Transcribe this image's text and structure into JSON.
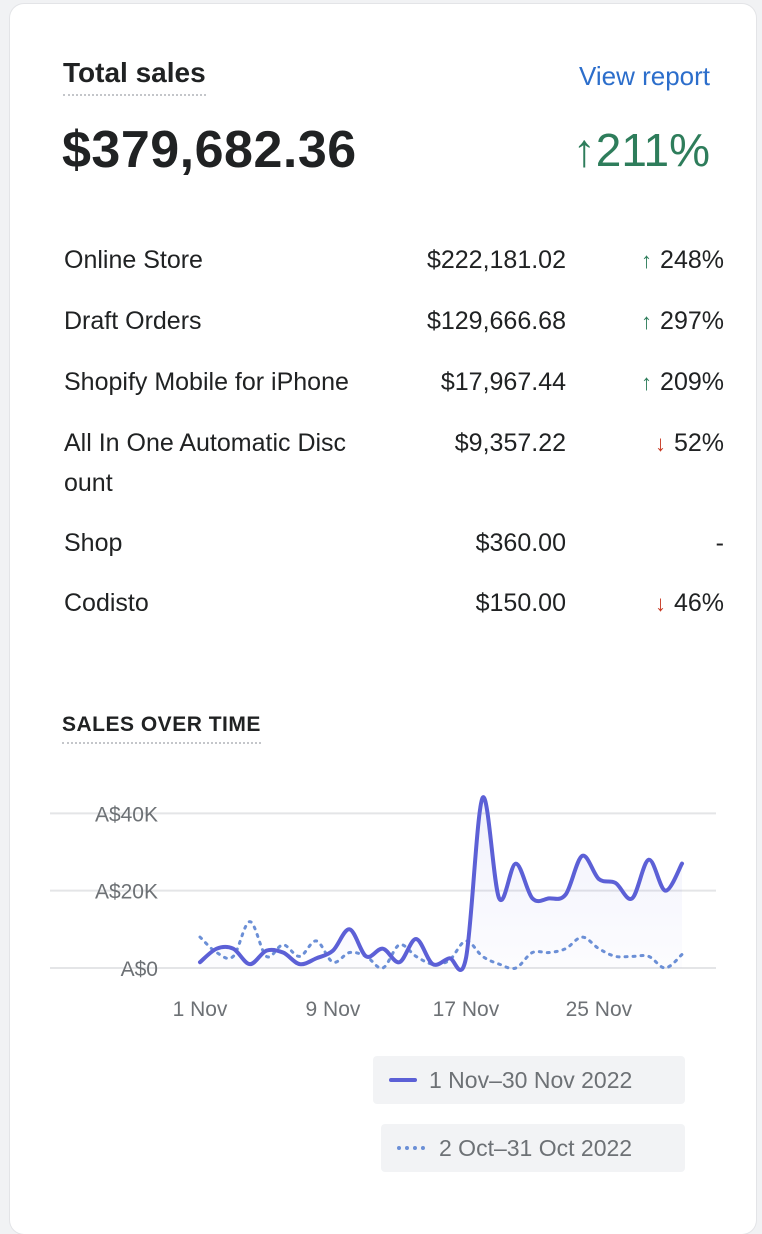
{
  "card": {
    "title": "Total sales",
    "view_report": "View report",
    "total": "$379,682.36",
    "total_change": "211%",
    "total_trend": "up"
  },
  "channels": [
    {
      "name": "Online Store",
      "amount": "$222,181.02",
      "change": "248%",
      "trend": "up"
    },
    {
      "name": "Draft Orders",
      "amount": "$129,666.68",
      "change": "297%",
      "trend": "up"
    },
    {
      "name": "Shopify Mobile for iPhone",
      "amount": "$17,967.44",
      "change": "209%",
      "trend": "up"
    },
    {
      "name": "All In One Automatic Discount",
      "amount": "$9,357.22",
      "change": "52%",
      "trend": "down"
    },
    {
      "name": "Shop",
      "amount": "$360.00",
      "change": "-",
      "trend": "none"
    },
    {
      "name": "Codisto",
      "amount": "$150.00",
      "change": "46%",
      "trend": "down"
    }
  ],
  "icons": {
    "up": "arrow-up-icon",
    "down": "arrow-down-icon"
  },
  "colors": {
    "positive": "#2e7d5b",
    "negative": "#c83a24",
    "link": "#2c6ecb",
    "current_series": "#5c60d6",
    "previous_series": "#6b8fd6"
  },
  "chart_data": {
    "type": "line",
    "title": "SALES OVER TIME",
    "y_ticks": [
      "A$0",
      "A$20K",
      "A$40K"
    ],
    "ylim": [
      0,
      45000
    ],
    "x_ticks": [
      {
        "day": 1,
        "label": "1 Nov"
      },
      {
        "day": 9,
        "label": "9 Nov"
      },
      {
        "day": 17,
        "label": "17 Nov"
      },
      {
        "day": 25,
        "label": "25 Nov"
      }
    ],
    "x": [
      1,
      2,
      3,
      4,
      5,
      6,
      7,
      8,
      9,
      10,
      11,
      12,
      13,
      14,
      15,
      16,
      17,
      18,
      19,
      20,
      21,
      22,
      23,
      24,
      25,
      26,
      27,
      28,
      29,
      30
    ],
    "series": [
      {
        "name": "1 Nov–30 Nov 2022",
        "style": "solid",
        "values": [
          1500,
          5000,
          5000,
          1000,
          4500,
          4000,
          1000,
          2500,
          4500,
          10000,
          3000,
          5000,
          1500,
          7500,
          1000,
          2500,
          2500,
          44000,
          18000,
          27000,
          18000,
          18000,
          19000,
          29000,
          23000,
          22000,
          18000,
          28000,
          20000,
          27000
        ]
      },
      {
        "name": "2 Oct–31 Oct 2022",
        "style": "dotted",
        "values": [
          8000,
          4000,
          3000,
          12000,
          3000,
          6000,
          3000,
          7000,
          1500,
          4000,
          3000,
          0,
          6000,
          3000,
          1000,
          2000,
          7000,
          3000,
          1000,
          0,
          4000,
          4000,
          5000,
          8000,
          5000,
          3000,
          3000,
          3000,
          0,
          3500
        ]
      }
    ],
    "legend": [
      "1 Nov–30 Nov 2022",
      "2 Oct–31 Oct 2022"
    ],
    "grid": true
  }
}
